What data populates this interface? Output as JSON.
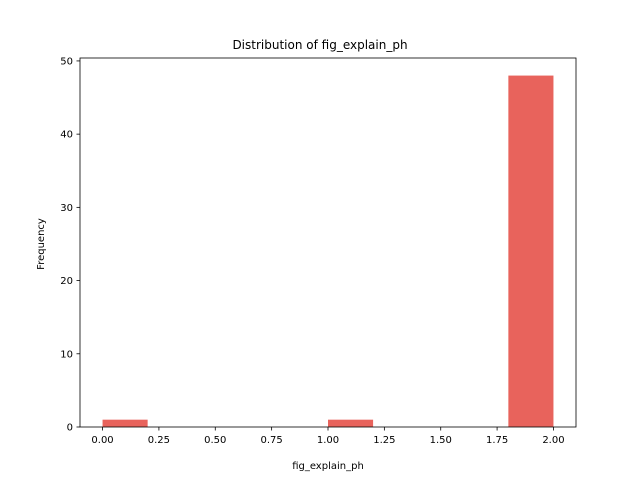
{
  "chart_data": {
    "type": "bar",
    "title": "Distribution of  fig_explain_ph",
    "xlabel": "fig_explain_ph",
    "ylabel": "Frequency",
    "bin_edges": [
      0.0,
      0.2,
      0.4,
      0.6,
      0.8,
      1.0,
      1.2,
      1.4,
      1.6,
      1.8,
      2.0
    ],
    "counts": [
      1,
      0,
      0,
      0,
      0,
      1,
      0,
      0,
      0,
      48
    ],
    "xlim": [
      -0.1,
      2.1
    ],
    "ylim": [
      0,
      50.4
    ],
    "x_ticks": [
      0.0,
      0.25,
      0.5,
      0.75,
      1.0,
      1.25,
      1.5,
      1.75,
      2.0
    ],
    "x_tick_labels": [
      "0.00",
      "0.25",
      "0.50",
      "0.75",
      "1.00",
      "1.25",
      "1.50",
      "1.75",
      "2.00"
    ],
    "y_ticks": [
      0,
      10,
      20,
      30,
      40,
      50
    ],
    "y_tick_labels": [
      "0",
      "10",
      "20",
      "30",
      "40",
      "50"
    ],
    "bar_color": "#e8635c",
    "grid": false,
    "legend": "none"
  }
}
